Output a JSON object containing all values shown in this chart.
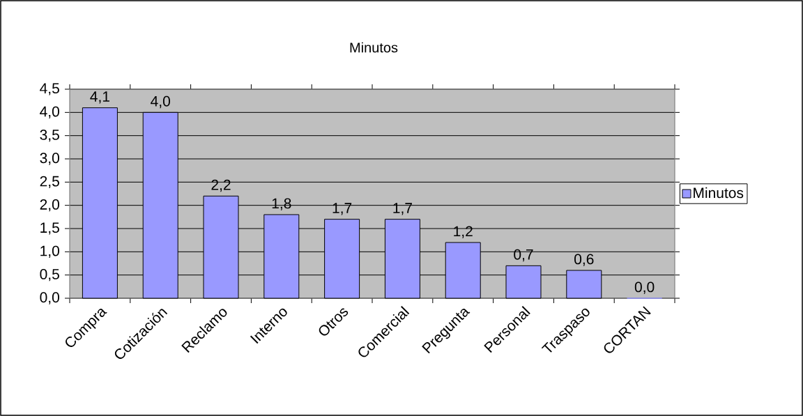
{
  "chart_data": {
    "type": "bar",
    "title": "Minutos",
    "categories": [
      "Compra",
      "Cotización",
      "Reclamo",
      "Interno",
      "Otros",
      "Comercial",
      "Pregunta",
      "Personal",
      "Traspaso",
      "CORTAN"
    ],
    "series": [
      {
        "name": "Minutos",
        "color": "#9999ff",
        "values": [
          4.1,
          4.0,
          2.2,
          1.8,
          1.7,
          1.7,
          1.2,
          0.7,
          0.6,
          0.0
        ],
        "value_labels": [
          "4,1",
          "4,0",
          "2,2",
          "1,8",
          "1,7",
          "1,7",
          "1,2",
          "0,7",
          "0,6",
          "0,0"
        ]
      }
    ],
    "ylim": [
      0,
      4.5
    ],
    "yticks": [
      {
        "value": 0,
        "label": "0,0"
      },
      {
        "value": 0.5,
        "label": "0,5"
      },
      {
        "value": 1,
        "label": "1,0"
      },
      {
        "value": 1.5,
        "label": "1,5"
      },
      {
        "value": 2,
        "label": "2,0"
      },
      {
        "value": 2.5,
        "label": "2,5"
      },
      {
        "value": 3,
        "label": "3,0"
      },
      {
        "value": 3.5,
        "label": "3,5"
      },
      {
        "value": 4,
        "label": "4,0"
      },
      {
        "value": 4.5,
        "label": "4,5"
      }
    ],
    "grid": "y",
    "legend": "right"
  }
}
